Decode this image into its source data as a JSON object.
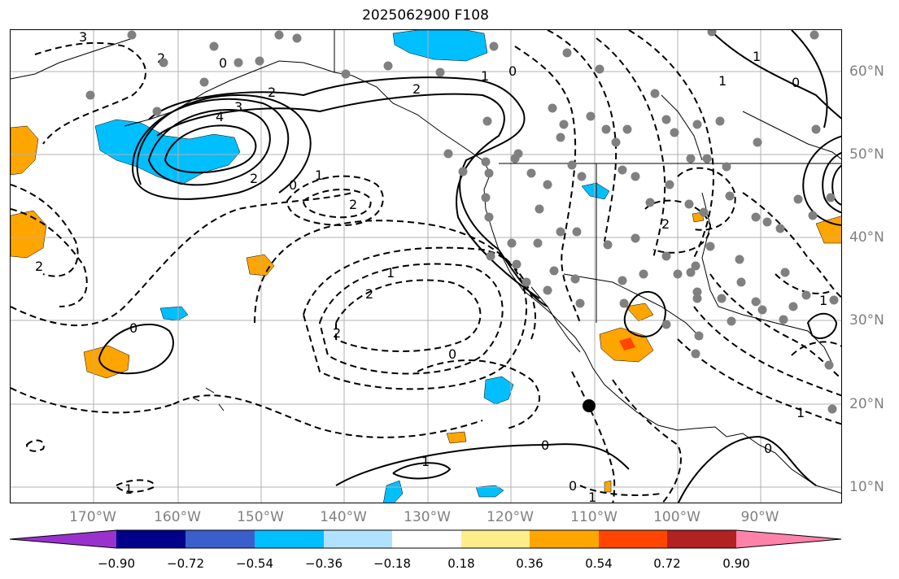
{
  "title": "2025062900 F108",
  "lon_labels": [
    "170°W",
    "160°W",
    "150°W",
    "140°W",
    "130°W",
    "120°W",
    "110°W",
    "100°W",
    "90°W"
  ],
  "lat_labels": [
    "60°N",
    "50°N",
    "40°N",
    "30°N",
    "20°N",
    "10°N"
  ],
  "colorbar": {
    "ticks": [
      "−0.90",
      "−0.72",
      "−0.54",
      "−0.36",
      "−0.18",
      "0.18",
      "0.36",
      "0.54",
      "0.72",
      "0.90"
    ],
    "colors": [
      "#9932cc",
      "#00008b",
      "#3a5fcd",
      "#00bfff",
      "#b0e2ff",
      "#ffffff",
      "#ffec8b",
      "#ffa500",
      "#ff4500",
      "#b22222",
      "#ff82ab"
    ]
  },
  "contour_labels": [
    "3",
    "2",
    "0",
    "3",
    "4",
    "2",
    "0",
    "1",
    "2",
    "2",
    "1",
    "0",
    "1",
    "0",
    "2",
    "2",
    "2",
    "1",
    "0",
    "2",
    "0",
    "1",
    "1",
    "0",
    "1",
    "0",
    "1",
    "0",
    "1",
    "2",
    "1"
  ],
  "colors": {
    "grid": "#b0b0b0",
    "station": "#808080",
    "contour": "#000000"
  }
}
